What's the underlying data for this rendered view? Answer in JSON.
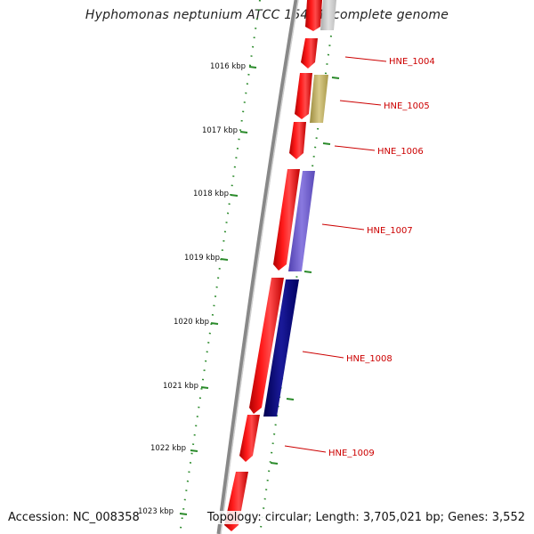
{
  "title": "Hyphomonas neptunium ATCC 15444, complete genome",
  "accession_text": "Accession: NC_008358",
  "topology_text": "Topology: circular; Length: 3,705,021 bp; Genes: 3,552",
  "scale_labels": [
    "1016 kbp",
    "1017 kbp",
    "1018 kbp",
    "1019 kbp",
    "1020 kbp",
    "1021 kbp",
    "1022 kbp",
    "1023 kbp"
  ],
  "gene_labels": [
    "HNE_1004",
    "HNE_1005",
    "HNE_1006",
    "HNE_1007",
    "HNE_1008",
    "HNE_1009"
  ],
  "colors": {
    "cds": "#ff0000",
    "gene_1005": "#c8b86a",
    "gene_1007": "#7060d0",
    "gene_1008": "#000080",
    "backbone": "#888888",
    "tick": "#2a8a2a",
    "label": "#cc0000"
  }
}
